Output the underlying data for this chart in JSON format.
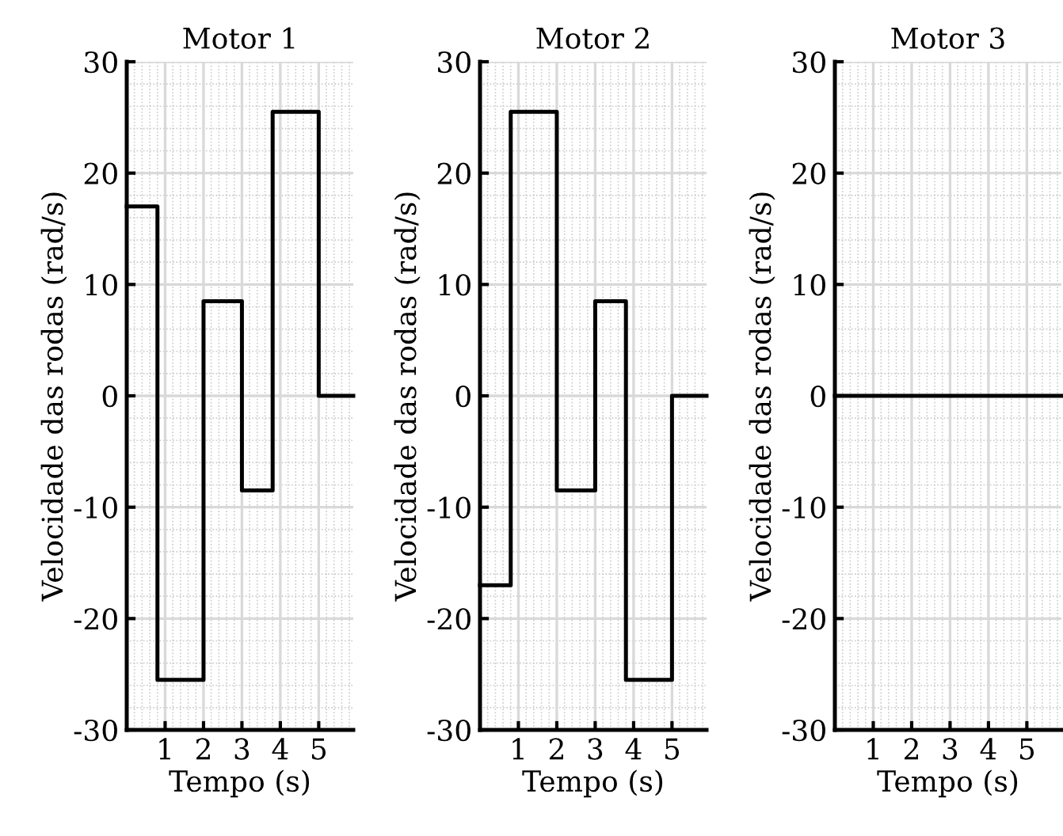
{
  "chart_data": [
    {
      "type": "step",
      "title": "Motor 1",
      "xlabel": "Tempo (s)",
      "ylabel": "Velocidade das rodas (rad/s)",
      "x": [
        0,
        0.8,
        2,
        3,
        3.8,
        5,
        5.9
      ],
      "series": [
        {
          "color": "#000000",
          "values": [
            17,
            -25.5,
            8.5,
            -8.5,
            25.5,
            0,
            0
          ]
        }
      ],
      "xlim": [
        0,
        5.9
      ],
      "xticks": [
        1,
        2,
        3,
        4,
        5
      ],
      "ylim": [
        -30,
        30
      ],
      "yticks": [
        {
          "value": -30,
          "label": "-30"
        },
        {
          "value": -20,
          "label": "-20"
        },
        {
          "value": -10,
          "label": "-10"
        },
        0,
        10,
        20,
        30
      ],
      "grid": true
    },
    {
      "type": "step",
      "title": "Motor 2",
      "xlabel": "Tempo (s)",
      "ylabel": "Velocidade das rodas (rad/s)",
      "x": [
        0,
        0.8,
        2,
        3,
        3.8,
        5,
        5.9
      ],
      "series": [
        {
          "color": "#000000",
          "values": [
            -17,
            25.5,
            -8.5,
            8.5,
            -25.5,
            0,
            0
          ]
        }
      ],
      "xlim": [
        0,
        5.9
      ],
      "xticks": [
        1,
        2,
        3,
        4,
        5
      ],
      "ylim": [
        -30,
        30
      ],
      "yticks": [
        {
          "value": -30,
          "label": "-30"
        },
        {
          "value": -20,
          "label": "-20"
        },
        {
          "value": -10,
          "label": "-10"
        },
        0,
        10,
        20,
        30
      ],
      "grid": true
    },
    {
      "type": "step",
      "title": "Motor 3",
      "xlabel": "Tempo (s)",
      "ylabel": "Velocidade das rodas (rad/s)",
      "x": [
        0,
        5.9
      ],
      "series": [
        {
          "color": "#000000",
          "values": [
            0,
            0
          ]
        }
      ],
      "xlim": [
        0,
        5.9
      ],
      "xticks": [
        1,
        2,
        3,
        4,
        5
      ],
      "ylim": [
        -30,
        30
      ],
      "yticks": [
        {
          "value": -30,
          "label": "-30"
        },
        {
          "value": -20,
          "label": "-20"
        },
        {
          "value": -10,
          "label": "-10"
        },
        0,
        10,
        20,
        30
      ],
      "grid": true
    }
  ]
}
